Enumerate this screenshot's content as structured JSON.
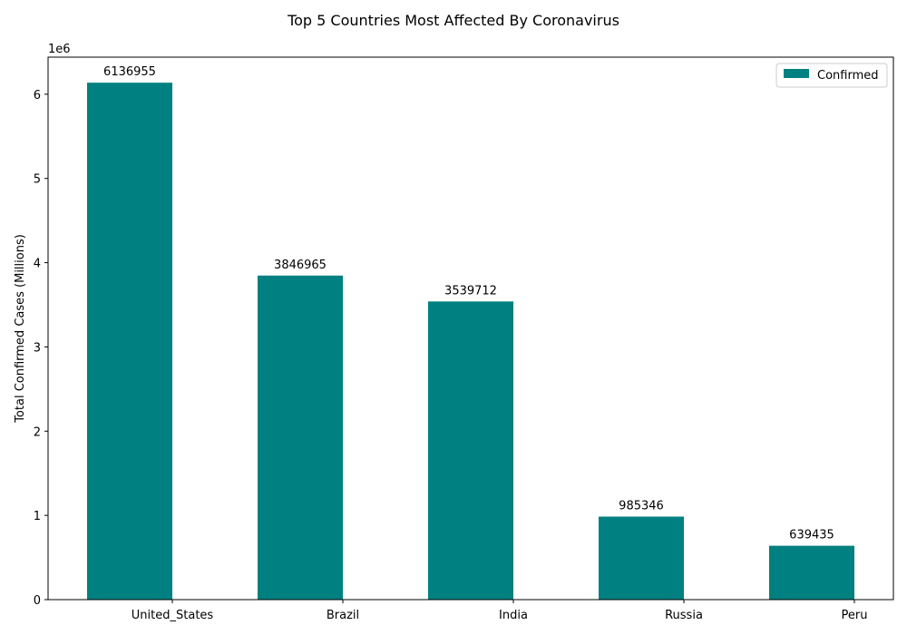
{
  "chart_data": {
    "type": "bar",
    "title": "Top 5 Countries Most Affected By Coronavirus",
    "xlabel": "",
    "ylabel": "Total Confirmed Cases (Millions)",
    "y_offset_label": "1e6",
    "categories": [
      "United_States",
      "Brazil",
      "India",
      "Russia",
      "Peru"
    ],
    "series": [
      {
        "name": "Confirmed",
        "values": [
          6136955,
          3846965,
          3539712,
          985346,
          639435
        ],
        "color": "#008080"
      }
    ],
    "data_labels": [
      "6136955",
      "3846965",
      "3539712",
      "985346",
      "639435"
    ],
    "ylim": [
      0,
      6440000
    ],
    "yticks": [
      0,
      1000000,
      2000000,
      3000000,
      4000000,
      5000000,
      6000000
    ],
    "ytick_labels": [
      "0",
      "1",
      "2",
      "3",
      "4",
      "5",
      "6"
    ],
    "grid": false,
    "legend_position": "top-right"
  }
}
